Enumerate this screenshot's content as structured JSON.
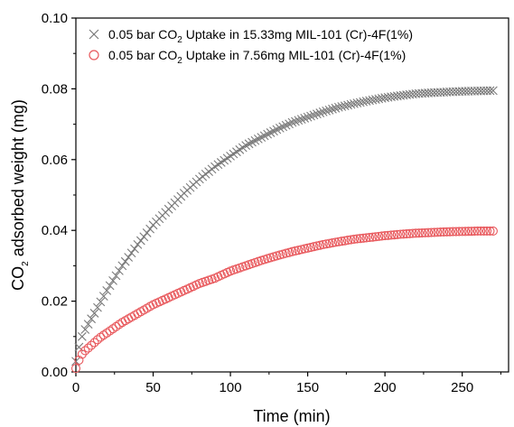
{
  "chart_data": {
    "type": "scatter",
    "xlabel": "Time (min)",
    "ylabel": {
      "pre": "CO",
      "sub": "2",
      "post": " adsorbed weight (mg)"
    },
    "xlim": [
      0,
      280
    ],
    "ylim": [
      0,
      0.1
    ],
    "xticks": [
      "0",
      "50",
      "100",
      "150",
      "200",
      "250"
    ],
    "xtick_values": [
      0,
      50,
      100,
      150,
      200,
      250
    ],
    "yticks": [
      "0.00",
      "0.02",
      "0.04",
      "0.06",
      "0.08",
      "0.10"
    ],
    "ytick_values": [
      0,
      0.02,
      0.04,
      0.06,
      0.08,
      0.1
    ],
    "legend_position": "top-left",
    "series": [
      {
        "name": {
          "pre": "0.05 bar CO",
          "sub": "2",
          "post": " Uptake in 15.33mg MIL-101 (Cr)-4F(1%)"
        },
        "marker": "x",
        "color": "#7a7a7a",
        "x": [
          0,
          3,
          6,
          10,
          15,
          20,
          25,
          30,
          40,
          50,
          60,
          70,
          80,
          90,
          100,
          110,
          120,
          130,
          140,
          150,
          160,
          170,
          180,
          190,
          200,
          210,
          220,
          230,
          240,
          250,
          260,
          270
        ],
        "y": [
          0.003,
          0.009,
          0.012,
          0.015,
          0.019,
          0.023,
          0.0265,
          0.03,
          0.036,
          0.0415,
          0.046,
          0.0505,
          0.0545,
          0.058,
          0.061,
          0.064,
          0.0663,
          0.0685,
          0.0705,
          0.072,
          0.0735,
          0.0748,
          0.0758,
          0.0767,
          0.0775,
          0.0781,
          0.0786,
          0.0789,
          0.0791,
          0.0793,
          0.0794,
          0.0795
        ]
      },
      {
        "name": {
          "pre": "0.05 bar CO",
          "sub": "2",
          "post": " Uptake in 7.56mg MIL-101 (Cr)-4F(1%)"
        },
        "marker": "o",
        "color": "#e8585c",
        "x": [
          0,
          3,
          6,
          10,
          15,
          20,
          25,
          30,
          40,
          50,
          60,
          70,
          80,
          90,
          100,
          110,
          120,
          130,
          140,
          150,
          160,
          170,
          180,
          190,
          200,
          210,
          220,
          230,
          240,
          250,
          260,
          270
        ],
        "y": [
          0.001,
          0.0045,
          0.006,
          0.0075,
          0.0095,
          0.011,
          0.0125,
          0.014,
          0.0165,
          0.019,
          0.021,
          0.023,
          0.025,
          0.0265,
          0.0285,
          0.03,
          0.0315,
          0.0328,
          0.034,
          0.035,
          0.036,
          0.0368,
          0.0375,
          0.038,
          0.0385,
          0.0389,
          0.0392,
          0.0394,
          0.0396,
          0.0397,
          0.0398,
          0.0398
        ]
      }
    ]
  }
}
